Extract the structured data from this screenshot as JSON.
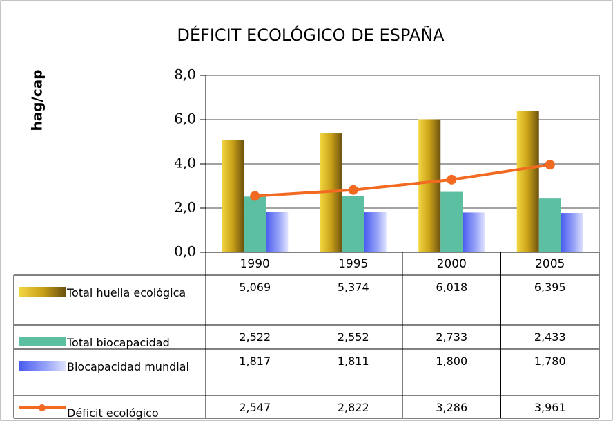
{
  "chart_data": {
    "type": "bar",
    "title": "DÉFICIT ECOLÓGICO DE ESPAÑA",
    "y_label": "hag/cap",
    "categories": [
      "1990",
      "1995",
      "2000",
      "2005"
    ],
    "ylim": [
      0,
      8
    ],
    "yticks": [
      {
        "value": 0,
        "label": "0,0"
      },
      {
        "value": 2,
        "label": "2,0"
      },
      {
        "value": 4,
        "label": "4,0"
      },
      {
        "value": 6,
        "label": "6,0"
      },
      {
        "value": 8,
        "label": "8,0"
      }
    ],
    "grid": true,
    "series": [
      {
        "name": "Total huella ecológica",
        "type": "bar",
        "color": "#c9a018",
        "values": [
          5.069,
          5.374,
          6.018,
          6.395
        ],
        "value_labels": [
          "5,069",
          "5,374",
          "6,018",
          "6,395"
        ]
      },
      {
        "name": "Total biocapacidad",
        "type": "bar",
        "color": "#5cbfa2",
        "values": [
          2.522,
          2.552,
          2.733,
          2.433
        ],
        "value_labels": [
          "2,522",
          "2,552",
          "2,733",
          "2,433"
        ]
      },
      {
        "name": "Biocapacidad mundial",
        "type": "bar",
        "color": "#6f7ff2",
        "values": [
          1.817,
          1.811,
          1.8,
          1.78
        ],
        "value_labels": [
          "1,817",
          "1,811",
          "1,800",
          "1,780"
        ]
      },
      {
        "name": "Déficit ecológico",
        "type": "line",
        "color": "#f26a22",
        "values": [
          2.547,
          2.822,
          3.286,
          3.961
        ],
        "value_labels": [
          "2,547",
          "2,822",
          "3,286",
          "3,961"
        ]
      }
    ]
  }
}
